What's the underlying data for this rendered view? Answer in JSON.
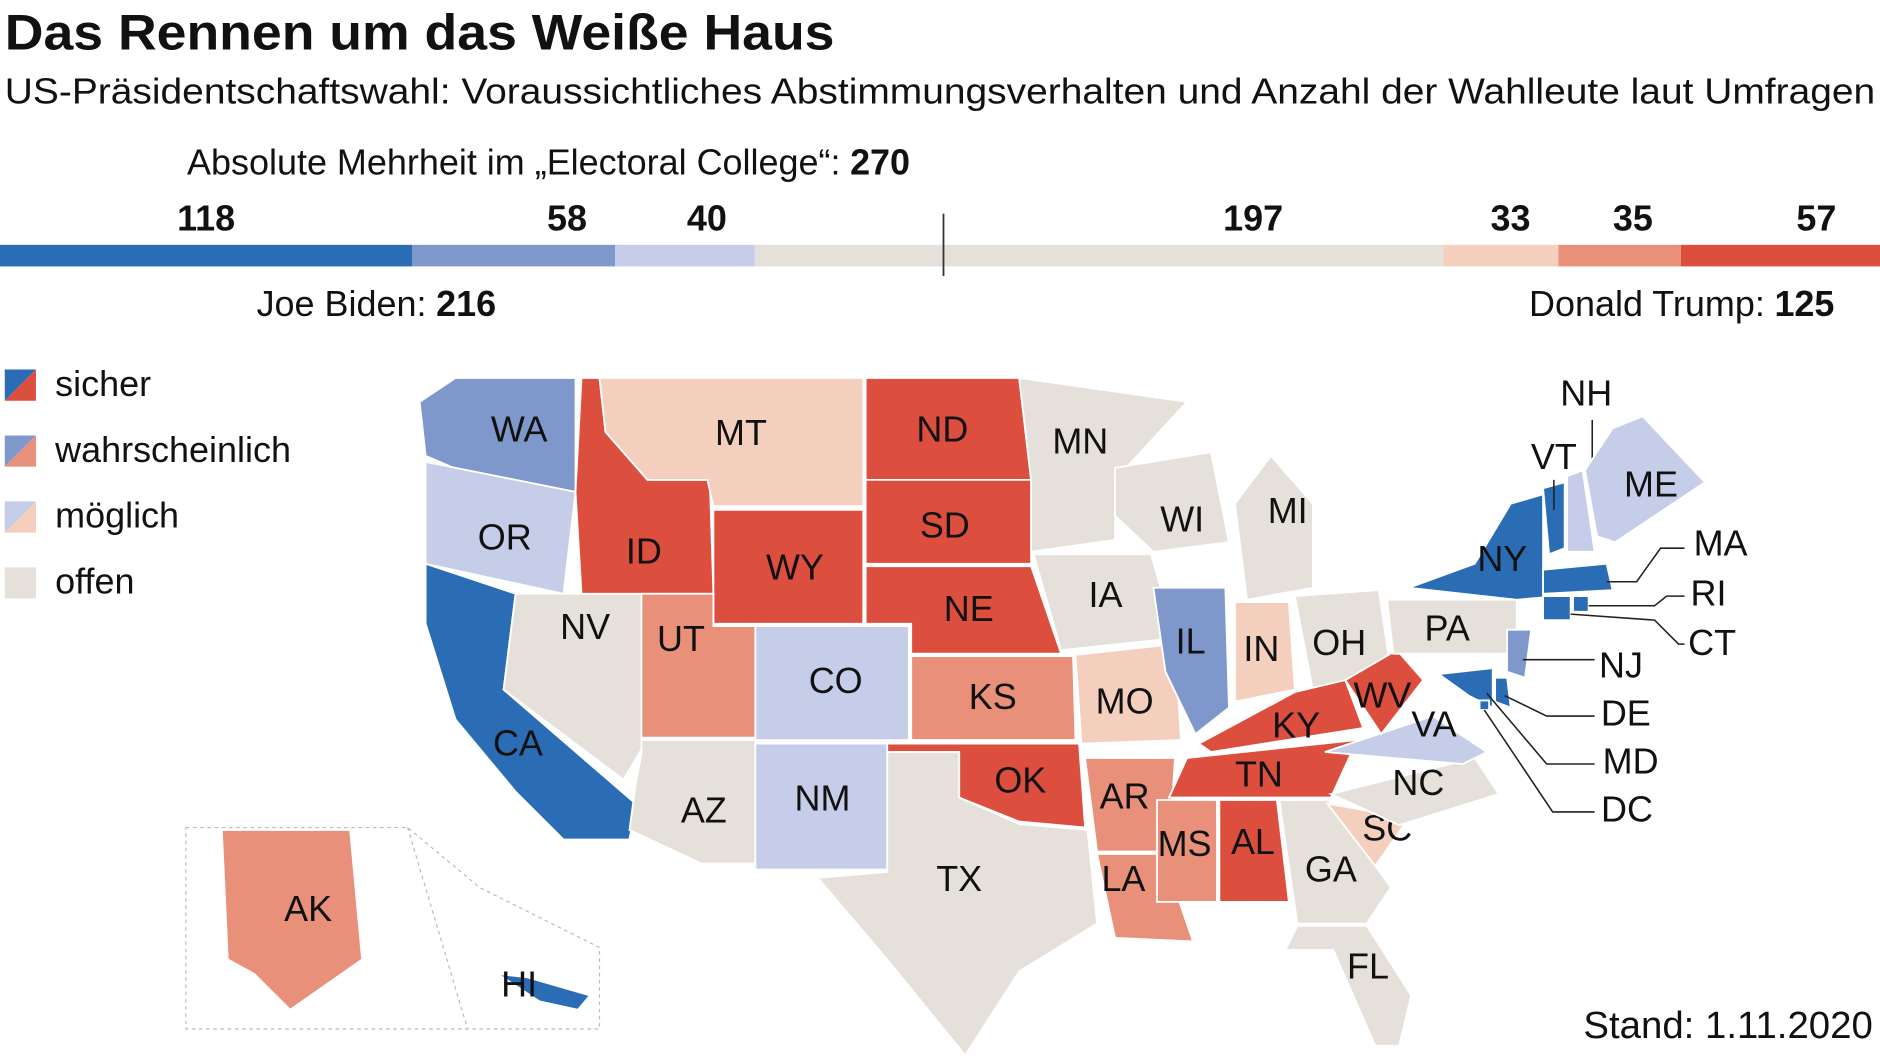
{
  "title": "Das Rennen um das Weiße Haus",
  "subtitle": "US-Präsidentschaftswahl: Voraussichtliches Abstimmungsverhalten und Anzahl der Wahlleute laut Umfragen",
  "majority": {
    "label": "Absolute Mehrheit im „Electoral College“:",
    "value": 270
  },
  "bar": [
    {
      "value": 118,
      "color": "#2a6db5"
    },
    {
      "value": 58,
      "color": "#7f98cc"
    },
    {
      "value": 40,
      "color": "#c6cde8"
    },
    {
      "value": 197,
      "color": "#e5e1da"
    },
    {
      "value": 33,
      "color": "#f4cfbe"
    },
    {
      "value": 35,
      "color": "#e8907a"
    },
    {
      "value": 57,
      "color": "#dc4f3e"
    }
  ],
  "biden": {
    "label": "Joe Biden:",
    "value": 216
  },
  "trump": {
    "label": "Donald Trump:",
    "value": 125
  },
  "legend": [
    {
      "label": "sicher",
      "colors": [
        "#2a6db5",
        "#dc4f3e"
      ]
    },
    {
      "label": "wahrscheinlich",
      "colors": [
        "#7f98cc",
        "#e8907a"
      ]
    },
    {
      "label": "möglich",
      "colors": [
        "#c6cde8",
        "#f4cfbe"
      ]
    },
    {
      "label": "offen",
      "colors": [
        "#e5e1da",
        "#e5e1da"
      ]
    }
  ],
  "states": [
    {
      "label": "WA",
      "color": "#7f98cc"
    },
    {
      "label": "OR",
      "color": "#c6cde8"
    },
    {
      "label": "CA",
      "color": "#2a6db5"
    },
    {
      "label": "NV",
      "color": "#e5e1da"
    },
    {
      "label": "ID",
      "color": "#dc4f3e"
    },
    {
      "label": "MT",
      "color": "#f4cfbe"
    },
    {
      "label": "WY",
      "color": "#dc4f3e"
    },
    {
      "label": "UT",
      "color": "#e8907a"
    },
    {
      "label": "CO",
      "color": "#c6cde8"
    },
    {
      "label": "AZ",
      "color": "#e5e1da"
    },
    {
      "label": "NM",
      "color": "#c6cde8"
    },
    {
      "label": "ND",
      "color": "#dc4f3e"
    },
    {
      "label": "SD",
      "color": "#dc4f3e"
    },
    {
      "label": "NE",
      "color": "#dc4f3e"
    },
    {
      "label": "KS",
      "color": "#e8907a"
    },
    {
      "label": "OK",
      "color": "#dc4f3e"
    },
    {
      "label": "TX",
      "color": "#e5e1da"
    },
    {
      "label": "MN",
      "color": "#e5e1da"
    },
    {
      "label": "IA",
      "color": "#e5e1da"
    },
    {
      "label": "MO",
      "color": "#f4cfbe"
    },
    {
      "label": "AR",
      "color": "#e8907a"
    },
    {
      "label": "LA",
      "color": "#e8907a"
    },
    {
      "label": "WI",
      "color": "#e5e1da"
    },
    {
      "label": "IL",
      "color": "#7f98cc"
    },
    {
      "label": "MI",
      "color": "#e5e1da"
    },
    {
      "label": "IN",
      "color": "#f4cfbe"
    },
    {
      "label": "OH",
      "color": "#e5e1da"
    },
    {
      "label": "KY",
      "color": "#dc4f3e"
    },
    {
      "label": "TN",
      "color": "#dc4f3e"
    },
    {
      "label": "MS",
      "color": "#e8907a"
    },
    {
      "label": "AL",
      "color": "#dc4f3e"
    },
    {
      "label": "GA",
      "color": "#e5e1da"
    },
    {
      "label": "FL",
      "color": "#e5e1da"
    },
    {
      "label": "SC",
      "color": "#f4cfbe"
    },
    {
      "label": "NC",
      "color": "#e5e1da"
    },
    {
      "label": "VA",
      "color": "#c6cde8"
    },
    {
      "label": "WV",
      "color": "#dc4f3e"
    },
    {
      "label": "PA",
      "color": "#e5e1da"
    },
    {
      "label": "NY",
      "color": "#2a6db5"
    },
    {
      "label": "VT",
      "color": "#2a6db5"
    },
    {
      "label": "NH",
      "color": "#c6cde8"
    },
    {
      "label": "ME",
      "color": "#c6cde8"
    },
    {
      "label": "MA",
      "color": "#2a6db5"
    },
    {
      "label": "CT",
      "color": "#2a6db5"
    },
    {
      "label": "RI",
      "color": "#2a6db5"
    },
    {
      "label": "NJ",
      "color": "#7f98cc"
    },
    {
      "label": "DE",
      "color": "#2a6db5"
    },
    {
      "label": "MD",
      "color": "#2a6db5"
    },
    {
      "label": "DC",
      "color": "#2a6db5"
    },
    {
      "label": "AK",
      "color": "#e8907a"
    },
    {
      "label": "HI",
      "color": "#2a6db5"
    }
  ],
  "footer": "Stand: 1.11.2020"
}
